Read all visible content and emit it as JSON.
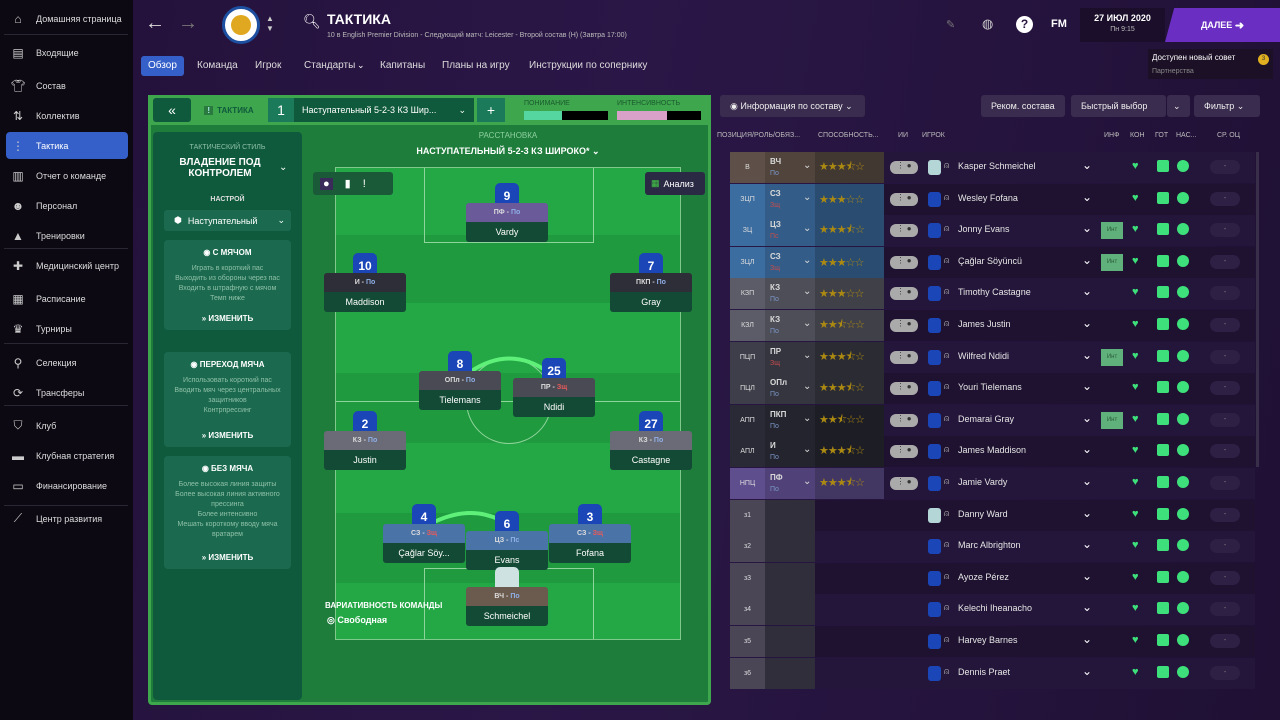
{
  "sidebar": {
    "items": [
      {
        "label": "Домашняя страница",
        "icon": "home-icon"
      },
      {
        "label": "Входящие",
        "icon": "inbox-icon"
      },
      {
        "label": "Состав",
        "icon": "shirt-icon"
      },
      {
        "label": "Коллектив",
        "icon": "dynamics-icon"
      },
      {
        "label": "Тактика",
        "icon": "tactics-icon",
        "active": true
      },
      {
        "label": "Отчет о команде",
        "icon": "report-icon"
      },
      {
        "label": "Персонал",
        "icon": "staff-icon"
      },
      {
        "label": "Тренировки",
        "icon": "training-icon"
      },
      {
        "label": "Медицинский центр",
        "icon": "medical-icon"
      },
      {
        "label": "Расписание",
        "icon": "calendar-icon"
      },
      {
        "label": "Турниры",
        "icon": "trophy-icon"
      },
      {
        "label": "Селекция",
        "icon": "search-icon"
      },
      {
        "label": "Трансферы",
        "icon": "transfer-icon"
      },
      {
        "label": "Клуб",
        "icon": "shield-icon"
      },
      {
        "label": "Клубная стратегия",
        "icon": "briefcase-icon"
      },
      {
        "label": "Финансирование",
        "icon": "money-icon"
      },
      {
        "label": "Центр развития",
        "icon": "development-icon"
      }
    ]
  },
  "header": {
    "title": "ТАКТИКА",
    "subtitle": "10 в English Premier Division - Следующий матч: Leicester - Второй состав (Н) (Завтра 17:00)",
    "date": "27 ИЮЛ 2020",
    "time": "Пн 9:15",
    "continue": "ДАЛЕЕ",
    "fm": "FM",
    "notice": "Доступен новый совет",
    "notice_sub": "Партнерства",
    "notice_badge": "3"
  },
  "tabs": [
    "Обзор",
    "Команда",
    "Игрок",
    "Стандарты",
    "Капитаны",
    "Планы на игру",
    "Инструкции по сопернику"
  ],
  "tactic": {
    "label": "ТАКТИКА",
    "slot": "1",
    "name": "Наступательный 5-2-3 КЗ Шир...",
    "familiarity_label": "ПОНИМАНИЕ",
    "familiarity": 0.45,
    "intensity_label": "ИНТЕНСИВНОСТЬ",
    "intensity": 0.6,
    "formation_label": "РАССТАНОВКА",
    "formation": "НАСТУПАТЕЛЬНЫЙ 5-2-3 КЗ ШИРОКО*",
    "analysis": "Анализ",
    "fluidity_label": "ВАРИАТИВНОСТЬ КОМАНДЫ",
    "fluidity": "Свободная"
  },
  "style": {
    "label": "ТАКТИЧЕСКИЙ СТИЛЬ",
    "value": "ВЛАДЕНИЕ ПОД КОНТРОЛЕМ",
    "mentality_label": "НАСТРОЙ",
    "mentality": "Наступательный",
    "cards": [
      {
        "title": "С МЯЧОМ",
        "lines": [
          "Играть в короткий пас",
          "Выходить из обороны через пас",
          "Входить в штрафную с мячом",
          "Темп ниже"
        ],
        "edit": "ИЗМЕНИТЬ"
      },
      {
        "title": "ПЕРЕХОД МЯЧА",
        "lines": [
          "Использовать короткий пас",
          "Вводить мяч через центральных защитников",
          "Контрпрессинг"
        ],
        "edit": "ИЗМЕНИТЬ"
      },
      {
        "title": "БЕЗ МЯЧА",
        "lines": [
          "Более высокая линия защиты",
          "Более высокая линия активного прессинга",
          "Более интенсивно",
          "Мешать короткому вводу мяча вратарем"
        ],
        "edit": "ИЗМЕНИТЬ"
      }
    ]
  },
  "pitch_players": [
    {
      "num": "9",
      "role": "ПФ",
      "duty": "По",
      "name": "Vardy"
    },
    {
      "num": "10",
      "role": "И",
      "duty": "По",
      "name": "Maddison"
    },
    {
      "num": "7",
      "role": "ПКП",
      "duty": "По",
      "name": "Gray"
    },
    {
      "num": "8",
      "role": "ОПл",
      "duty": "По",
      "name": "Tielemans"
    },
    {
      "num": "25",
      "role": "ПР",
      "duty": "Зщ",
      "name": "Ndidi"
    },
    {
      "num": "2",
      "role": "КЗ",
      "duty": "По",
      "name": "Justin"
    },
    {
      "num": "27",
      "role": "КЗ",
      "duty": "По",
      "name": "Castagne"
    },
    {
      "num": "4",
      "role": "СЗ",
      "duty": "Зщ",
      "name": "Çağlar Söy..."
    },
    {
      "num": "6",
      "role": "ЦЗ",
      "duty": "Пс",
      "name": "Evans"
    },
    {
      "num": "3",
      "role": "СЗ",
      "duty": "Зщ",
      "name": "Fofana"
    },
    {
      "num": "",
      "role": "ВЧ",
      "duty": "По",
      "name": "Schmeichel"
    }
  ],
  "table": {
    "buttons": {
      "info": "Информация по составу",
      "recommend": "Реком. состава",
      "quick": "Быстрый выбор",
      "filter": "Фильтр"
    },
    "columns": [
      "ПОЗИЦИЯ/РОЛЬ/ОБЯЗ...",
      "СПОСОБНОСТЬ...",
      "ИИ",
      "ИГРОК",
      "ИНФ",
      "КОН",
      "ГОТ",
      "НАС...",
      "СР. ОЦ"
    ],
    "rows": [
      {
        "pos": "В",
        "role": "ВЧ",
        "duty": "По",
        "stars": 3.5,
        "name": "Kasper Schmeichel",
        "gk": true
      },
      {
        "pos": "ЗЦП",
        "role": "СЗ",
        "duty": "Зщ",
        "stars": 3,
        "name": "Wesley Fofana"
      },
      {
        "pos": "ЗЦ",
        "role": "ЦЗ",
        "duty": "Пс",
        "stars": 3.5,
        "name": "Jonny Evans",
        "inf": "Инт"
      },
      {
        "pos": "ЗЦЛ",
        "role": "СЗ",
        "duty": "Зщ",
        "stars": 3,
        "name": "Çağlar Söyüncü",
        "inf": "Инт"
      },
      {
        "pos": "КЗП",
        "role": "КЗ",
        "duty": "По",
        "stars": 3,
        "name": "Timothy Castagne"
      },
      {
        "pos": "КЗЛ",
        "role": "КЗ",
        "duty": "По",
        "stars": 2.5,
        "name": "James Justin"
      },
      {
        "pos": "ПЦП",
        "role": "ПР",
        "duty": "Зщ",
        "stars": 3.5,
        "name": "Wilfred Ndidi",
        "inf": "Инт"
      },
      {
        "pos": "ПЦЛ",
        "role": "ОПл",
        "duty": "По",
        "stars": 3.5,
        "name": "Youri Tielemans"
      },
      {
        "pos": "АПП",
        "role": "ПКП",
        "duty": "По",
        "stars": 2.5,
        "name": "Demarai Gray",
        "inf": "Инт"
      },
      {
        "pos": "АПЛ",
        "role": "И",
        "duty": "По",
        "stars": 3.5,
        "name": "James Maddison"
      },
      {
        "pos": "НПЦ",
        "role": "ПФ",
        "duty": "По",
        "stars": 3.5,
        "name": "Jamie Vardy"
      },
      {
        "pos": "з1",
        "name": "Danny Ward",
        "gk": true
      },
      {
        "pos": "з2",
        "name": "Marc Albrighton"
      },
      {
        "pos": "з3",
        "name": "Ayoze Pérez"
      },
      {
        "pos": "з4",
        "name": "Kelechi Iheanacho"
      },
      {
        "pos": "з5",
        "name": "Harvey Barnes"
      },
      {
        "pos": "з6",
        "name": "Dennis Praet"
      }
    ],
    "avg": "-"
  },
  "colors": {
    "accent": "#3560c9",
    "continue": "#6a2fc2",
    "pitch": "#1f9a3f",
    "panel": "#3ea64c",
    "status_green": "#3de07a",
    "star": "#f5c518",
    "attack_duty": "#8fb0e8",
    "defend_duty": "#e85a5a"
  }
}
